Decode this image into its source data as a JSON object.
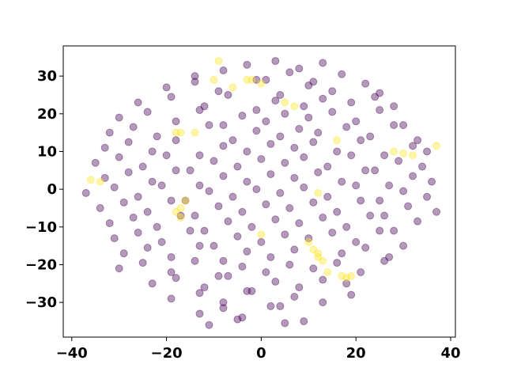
{
  "chart_data": {
    "type": "scatter",
    "xlim": [
      -41.8,
      41
    ],
    "ylim": [
      -39.2,
      38
    ],
    "xticks": [
      {
        "value": -40,
        "label": "−40"
      },
      {
        "value": -20,
        "label": "−20"
      },
      0,
      20,
      40
    ],
    "yticks": [
      {
        "value": -30,
        "label": "−30"
      },
      {
        "value": -20,
        "label": "−20"
      },
      {
        "value": -10,
        "label": "−10"
      },
      0,
      10,
      20,
      30
    ],
    "series": [
      {
        "color": "#440154",
        "x": [
          -3,
          3,
          8,
          13,
          -14,
          -8,
          1,
          6,
          11,
          17,
          -20,
          -14,
          -9,
          -1,
          4,
          10,
          15,
          22,
          25,
          -26,
          -19,
          -12,
          -7,
          -1,
          3,
          9,
          13,
          19,
          24,
          28,
          -30,
          -24,
          -18,
          -13,
          -8,
          -4,
          1,
          5,
          10,
          15,
          20,
          25,
          30,
          -32,
          -27,
          -22,
          -11,
          -6,
          -1,
          4,
          8,
          12,
          18,
          23,
          28,
          33,
          -33,
          -28,
          -23,
          -18,
          -13,
          -8,
          -3,
          2,
          7,
          11,
          16,
          21,
          26,
          32,
          35,
          -35,
          -30,
          -25,
          -20,
          -15,
          -10,
          -5,
          0,
          5,
          9,
          14,
          19,
          24,
          29,
          34,
          -33,
          -28,
          -23,
          -18,
          -13,
          -8,
          -3,
          2,
          7,
          12,
          17,
          22,
          27,
          32,
          36,
          -37,
          -31,
          -26,
          -21,
          -16,
          -11,
          -6,
          -1,
          4,
          9,
          14,
          20,
          25,
          30,
          35,
          -34,
          -29,
          -24,
          -19,
          -14,
          -9,
          -4,
          1,
          6,
          11,
          16,
          21,
          26,
          31,
          37,
          -32,
          -27,
          -22,
          -17,
          -12,
          -7,
          -2,
          3,
          8,
          13,
          18,
          23,
          28,
          33,
          -31,
          -26,
          -21,
          -15,
          -10,
          -5,
          0,
          5,
          10,
          15,
          20,
          25,
          30,
          -29,
          -24,
          -19,
          -13,
          -8,
          -3,
          2,
          7,
          17,
          22,
          27,
          -30,
          -25,
          -19,
          -14,
          -9,
          -4,
          1,
          6,
          11,
          16,
          21,
          26,
          -23,
          -18,
          -12,
          -7,
          -2,
          3,
          8,
          13,
          18,
          -19,
          -13,
          -8,
          -3,
          2,
          7,
          13,
          19,
          -13,
          -8,
          -4,
          4,
          9,
          -11,
          -5,
          5
        ],
        "y": [
          33,
          34,
          32,
          33.5,
          30,
          31.5,
          29,
          31,
          28.5,
          30.5,
          27,
          28.5,
          26,
          29,
          25,
          27.5,
          26,
          28,
          25.5,
          23,
          24.5,
          22,
          25,
          21,
          23.5,
          22,
          24,
          23,
          24.5,
          22,
          19,
          20.5,
          18,
          21,
          17,
          19.5,
          18,
          20,
          19,
          20.5,
          18,
          21,
          17,
          15,
          16.5,
          14,
          17,
          13,
          15.5,
          14,
          16,
          15,
          16.5,
          14,
          17,
          13,
          11,
          12.5,
          10,
          13,
          9,
          11.5,
          10,
          12,
          11,
          12.5,
          10,
          13,
          9,
          11.5,
          10,
          7,
          8.5,
          6,
          9,
          5,
          7.5,
          6,
          8,
          7,
          8.5,
          6,
          9,
          5,
          7.5,
          6,
          3,
          4.5,
          2,
          5,
          1,
          3.5,
          2,
          4,
          3,
          4.5,
          2,
          5,
          1,
          3.5,
          2,
          -1,
          0.5,
          -2,
          1,
          -3,
          -0.5,
          -2,
          0,
          -1,
          0.5,
          -2,
          1,
          -3,
          -0.5,
          -2,
          -5,
          -3.5,
          -6,
          -3,
          -7,
          -4.5,
          -6,
          -4,
          -5,
          -3.5,
          -6,
          -3,
          -7,
          -4.5,
          -6,
          -9,
          -7.5,
          -10,
          -7,
          -11,
          -8.5,
          -10,
          -8,
          -9,
          -7.5,
          -10,
          -7,
          -11,
          -8.5,
          -13,
          -11.5,
          -14,
          -11,
          -15,
          -12.5,
          -14,
          -12,
          -13,
          -11.5,
          -14,
          -11,
          -15,
          -17,
          -15.5,
          -18,
          -15,
          -19,
          -16.5,
          -18,
          -16,
          -17,
          -15.5,
          -18,
          -21,
          -19.5,
          -22,
          -19,
          -23,
          -20.5,
          -22,
          -20,
          -21,
          -19.5,
          -22,
          -19,
          -25,
          -23.5,
          -26,
          -23,
          -27,
          -24.5,
          -26,
          -24,
          -25,
          -29,
          -27.5,
          -30,
          -27,
          -31,
          -28.5,
          -30,
          -28,
          -33,
          -31.5,
          -34,
          -31,
          -35,
          -36,
          -34.5,
          -35.5
        ]
      },
      {
        "color": "#fde725",
        "x": [
          -9,
          -10,
          -6,
          -3,
          -2,
          0,
          5,
          7,
          -18,
          -17,
          -14,
          -36,
          -34,
          -17,
          -18,
          -17,
          0,
          11,
          12,
          12,
          13,
          10,
          14,
          17,
          18,
          19,
          28,
          30,
          32,
          37,
          12,
          16,
          -16
        ],
        "y": [
          34,
          29,
          27,
          29,
          29,
          28,
          23,
          22,
          15,
          15,
          15,
          2.5,
          2,
          -5,
          -6,
          -7.5,
          -12,
          -16,
          -17,
          -18,
          -19,
          -14,
          -22,
          -23,
          -23.5,
          -23,
          10,
          9.5,
          9,
          11.5,
          -1,
          13,
          -3
        ]
      }
    ]
  }
}
